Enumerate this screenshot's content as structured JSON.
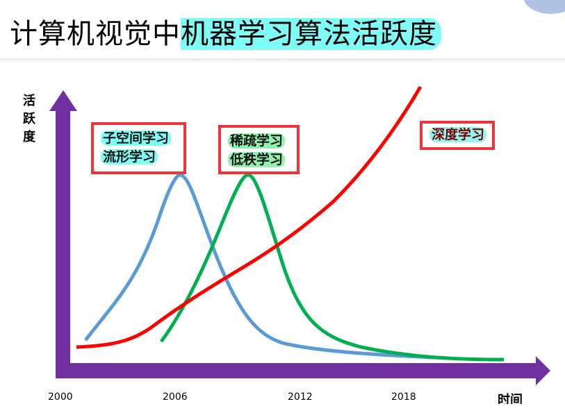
{
  "title": {
    "plain": "计算机视觉中",
    "highlight": "机器学习算法活跃度"
  },
  "y_axis_label": "活跃度",
  "x_axis_label": "时间",
  "x_ticks": [
    "2000",
    "2006",
    "2012",
    "2018"
  ],
  "boxes": [
    {
      "lines": [
        "子空间学习",
        "流形学习"
      ],
      "curve_color": "#5b9bd5"
    },
    {
      "lines": [
        "稀疏学习",
        "低秩学习"
      ],
      "curve_color": "#00b050"
    },
    {
      "lines": [
        "深度学习"
      ],
      "curve_color": "#ff0000"
    }
  ],
  "colors": {
    "axis": "#7030a0",
    "box_border": "#f0333a",
    "title_highlight": "#7ffcf5"
  }
}
